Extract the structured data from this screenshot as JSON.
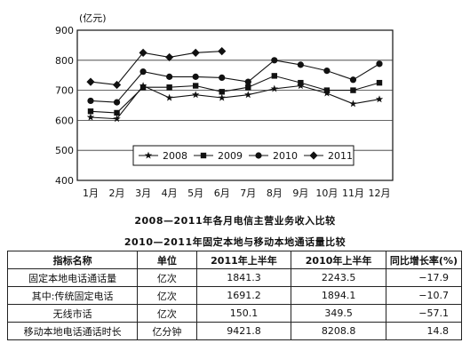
{
  "chart_data": [
    {
      "type": "line",
      "title": "2008—2011年各月电信主营业务收入比较",
      "ylabel": "(亿元)",
      "ylim": [
        400,
        900
      ],
      "yticks": [
        "400",
        "500",
        "600",
        "700",
        "800",
        "900"
      ],
      "categories": [
        "1月",
        "2月",
        "3月",
        "4月",
        "5月",
        "6月",
        "7月",
        "8月",
        "9月",
        "10月",
        "11月",
        "12月"
      ],
      "grid": true,
      "legend": "inside-lower-center",
      "series": [
        {
          "name": "2008",
          "marker": "star",
          "values": [
            610,
            605,
            715,
            675,
            685,
            675,
            685,
            705,
            715,
            690,
            655,
            670
          ]
        },
        {
          "name": "2009",
          "marker": "square",
          "values": [
            630,
            625,
            710,
            710,
            715,
            695,
            710,
            748,
            725,
            700,
            700,
            725
          ]
        },
        {
          "name": "2010",
          "marker": "circle",
          "values": [
            665,
            660,
            762,
            745,
            745,
            742,
            728,
            800,
            785,
            765,
            735,
            788
          ]
        },
        {
          "name": "2011",
          "marker": "diamond",
          "values": [
            728,
            718,
            825,
            810,
            825,
            830,
            null,
            null,
            null,
            null,
            null,
            null
          ]
        }
      ]
    },
    {
      "type": "table",
      "title": "2010—2011年固定本地与移动本地通话量比较",
      "headers": [
        "指标名称",
        "单位",
        "2011年上半年",
        "2010年上半年",
        "同比增长率(%)"
      ],
      "rows": [
        [
          "固定本地电话通话量",
          "亿次",
          "1841.3",
          "2243.5",
          "−17.9"
        ],
        [
          "其中:传统固定电话",
          "亿次",
          "1691.2",
          "1894.1",
          "−10.7"
        ],
        [
          "无线市话",
          "亿次",
          "150.1",
          "349.5",
          "−57.1"
        ],
        [
          "移动本地电话通话时长",
          "亿分钟",
          "9421.8",
          "8208.8",
          "14.8"
        ]
      ]
    }
  ]
}
